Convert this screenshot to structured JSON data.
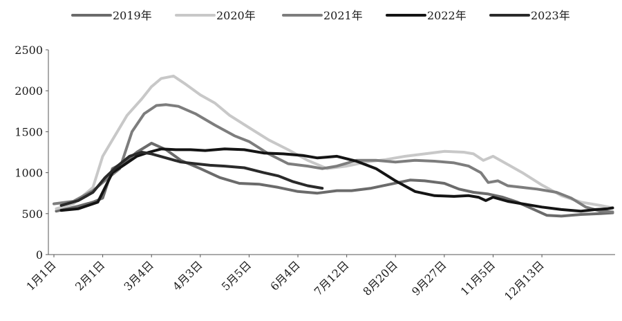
{
  "chart_data": {
    "type": "line",
    "ylim": [
      0,
      2500
    ],
    "yticks": [
      0,
      500,
      1000,
      1500,
      2000,
      2500
    ],
    "categories": [
      "1月1日",
      "2月1日",
      "3月4日",
      "4月3日",
      "5月5日",
      "6月4日",
      "7月12日",
      "8月20日",
      "9月27日",
      "11月5日",
      "12月13日"
    ],
    "x_range": [
      0,
      11.5
    ],
    "grid": false,
    "legend_position": "top",
    "series": [
      {
        "name": "2019年",
        "color": "#6b6b6b",
        "x": [
          0.05,
          0.5,
          0.8,
          1.0,
          1.2,
          1.45,
          1.7,
          2.0,
          2.3,
          2.6,
          3.0,
          3.4,
          3.8,
          4.2,
          4.6,
          5.0,
          5.4,
          5.8,
          6.1,
          6.5,
          6.9,
          7.3,
          7.6,
          8.0,
          8.3,
          8.6,
          8.9,
          9.2,
          9.5,
          9.8,
          10.1,
          10.4,
          10.8,
          11.2,
          11.45
        ],
        "values": [
          530,
          590,
          640,
          690,
          1050,
          1130,
          1250,
          1360,
          1280,
          1150,
          1050,
          940,
          870,
          860,
          820,
          770,
          750,
          780,
          780,
          810,
          860,
          910,
          900,
          870,
          800,
          760,
          740,
          700,
          640,
          560,
          480,
          470,
          490,
          500,
          510
        ]
      },
      {
        "name": "2020年",
        "color": "#c8c8c8",
        "x": [
          0.05,
          0.4,
          0.8,
          1.0,
          1.2,
          1.5,
          1.8,
          2.0,
          2.2,
          2.45,
          2.7,
          3.0,
          3.3,
          3.6,
          4.0,
          4.4,
          4.8,
          5.2,
          5.6,
          6.0,
          6.4,
          6.8,
          7.2,
          7.6,
          8.0,
          8.4,
          8.6,
          8.8,
          9.0,
          9.3,
          9.6,
          10.0,
          10.4,
          10.8,
          11.2,
          11.45
        ],
        "values": [
          560,
          620,
          820,
          1200,
          1400,
          1700,
          1900,
          2050,
          2150,
          2180,
          2080,
          1950,
          1850,
          1700,
          1550,
          1400,
          1280,
          1150,
          1050,
          1080,
          1130,
          1160,
          1200,
          1230,
          1260,
          1250,
          1230,
          1150,
          1200,
          1100,
          1000,
          850,
          720,
          640,
          600,
          570
        ]
      },
      {
        "name": "2021年",
        "color": "#7d7d7d",
        "x": [
          0.0,
          0.4,
          0.8,
          1.1,
          1.35,
          1.6,
          1.85,
          2.1,
          2.3,
          2.55,
          2.9,
          3.3,
          3.7,
          4.0,
          4.4,
          4.8,
          5.2,
          5.5,
          5.8,
          6.2,
          6.6,
          7.0,
          7.4,
          7.8,
          8.2,
          8.5,
          8.75,
          8.9,
          9.1,
          9.3,
          9.6,
          9.9,
          10.3,
          10.6,
          10.9,
          11.2,
          11.45
        ],
        "values": [
          620,
          650,
          780,
          930,
          1050,
          1500,
          1720,
          1820,
          1830,
          1810,
          1720,
          1580,
          1450,
          1380,
          1230,
          1110,
          1080,
          1050,
          1080,
          1150,
          1150,
          1130,
          1150,
          1140,
          1120,
          1080,
          1000,
          880,
          900,
          840,
          820,
          800,
          760,
          690,
          580,
          530,
          520
        ]
      },
      {
        "name": "2022年",
        "color": "#141414",
        "x": [
          0.15,
          0.5,
          0.9,
          1.2,
          1.45,
          1.7,
          1.95,
          2.2,
          2.5,
          2.8,
          3.1,
          3.5,
          3.9,
          4.3,
          4.7,
          5.1,
          5.4,
          5.6,
          5.8,
          6.2,
          6.6,
          7.0,
          7.4,
          7.8,
          8.2,
          8.5,
          8.7,
          8.85,
          9.0,
          9.3,
          9.6,
          10.0,
          10.4,
          10.8,
          11.1,
          11.35,
          11.45
        ],
        "values": [
          540,
          560,
          640,
          1000,
          1100,
          1200,
          1250,
          1290,
          1280,
          1280,
          1270,
          1290,
          1280,
          1240,
          1230,
          1210,
          1180,
          1190,
          1200,
          1140,
          1050,
          900,
          770,
          720,
          710,
          720,
          700,
          660,
          700,
          650,
          620,
          580,
          550,
          530,
          550,
          560,
          570
        ]
      },
      {
        "name": "2023年",
        "color": "#2a2a2a",
        "x": [
          0.15,
          0.5,
          0.8,
          1.05,
          1.3,
          1.55,
          1.8,
          2.0,
          2.3,
          2.6,
          2.9,
          3.2,
          3.5,
          3.9,
          4.3,
          4.6,
          4.9,
          5.2,
          5.5
        ],
        "values": [
          600,
          660,
          760,
          940,
          1080,
          1200,
          1250,
          1230,
          1180,
          1130,
          1110,
          1090,
          1080,
          1060,
          1000,
          960,
          890,
          840,
          810
        ]
      }
    ]
  }
}
